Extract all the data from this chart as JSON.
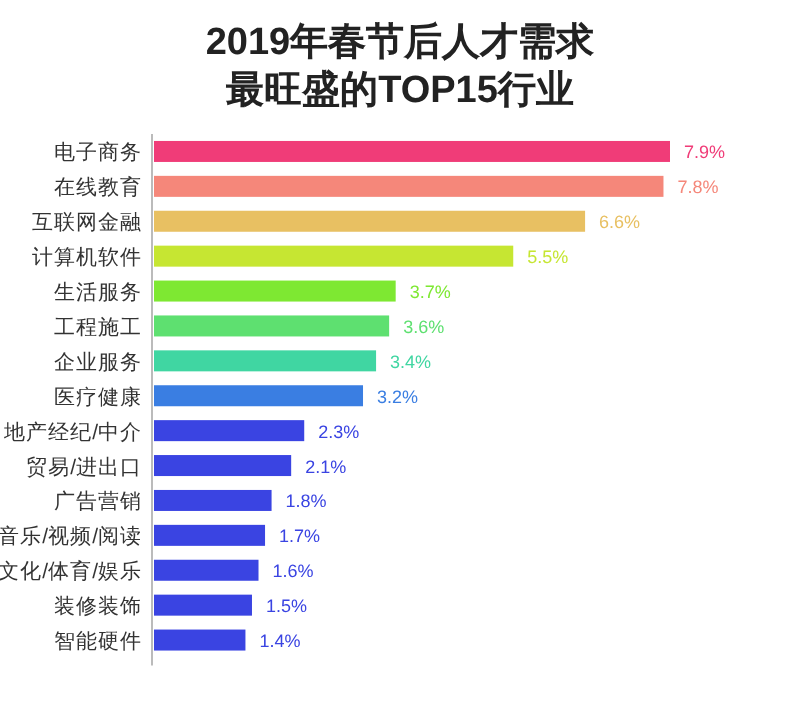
{
  "chart_data": {
    "type": "bar",
    "orientation": "horizontal",
    "title": "2019年春节后人才需求最旺盛的TOP15行业",
    "categories": [
      "电子商务",
      "在线教育",
      "互联网金融",
      "计算机软件",
      "生活服务",
      "工程施工",
      "企业服务",
      "医疗健康",
      "地产经纪/中介",
      "贸易/进出口",
      "广告营销",
      "音乐/视频/阅读",
      "文化/体育/娱乐",
      "装修装饰",
      "智能硬件"
    ],
    "values": [
      7.9,
      7.8,
      6.6,
      5.5,
      3.7,
      3.6,
      3.4,
      3.2,
      2.3,
      2.1,
      1.8,
      1.7,
      1.6,
      1.5,
      1.4
    ],
    "value_labels": [
      "7.9%",
      "7.8%",
      "6.6%",
      "5.5%",
      "3.7%",
      "3.6%",
      "3.4%",
      "3.2%",
      "2.3%",
      "2.1%",
      "1.8%",
      "1.7%",
      "1.6%",
      "1.5%",
      "1.4%"
    ],
    "colors": [
      "#f03c78",
      "#f5877a",
      "#e8c062",
      "#c6e632",
      "#7ee832",
      "#5ee070",
      "#40d6a2",
      "#3a7ee2",
      "#3a44e2",
      "#3a44e2",
      "#3a44e2",
      "#3a44e2",
      "#3a44e2",
      "#3a44e2",
      "#3a44e2"
    ]
  }
}
